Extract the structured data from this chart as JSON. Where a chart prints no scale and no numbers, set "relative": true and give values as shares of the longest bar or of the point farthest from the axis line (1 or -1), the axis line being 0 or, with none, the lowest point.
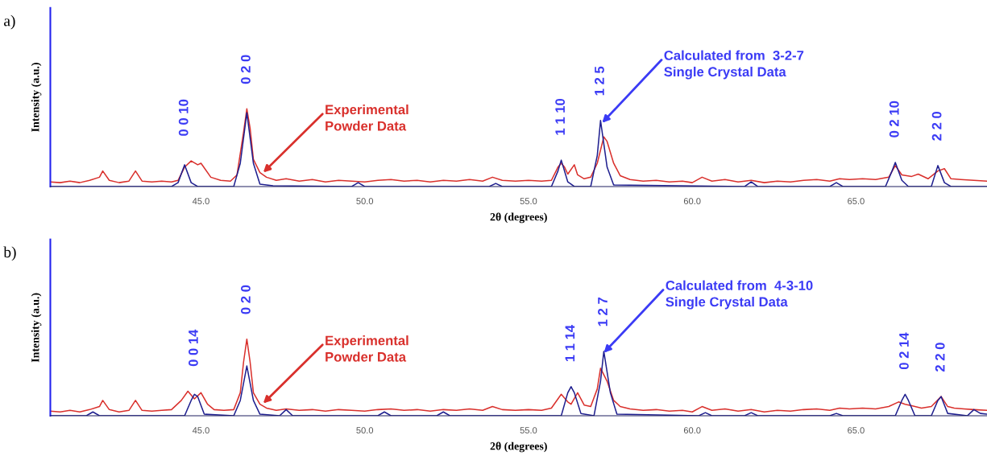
{
  "chart_data": [
    {
      "type": "line",
      "title": "a)",
      "xlabel": "2θ (degrees)",
      "ylabel": "Intensity (a.u.)",
      "relative": true,
      "xlim": [
        40.4,
        69.0
      ],
      "xticks": [
        {
          "value": 45,
          "label": "45.0"
        },
        {
          "value": 50,
          "label": "50.0"
        },
        {
          "value": 55,
          "label": "55.0"
        },
        {
          "value": 60,
          "label": "60.0"
        },
        {
          "value": 65,
          "label": "65.0"
        }
      ],
      "grid": false,
      "legend": false,
      "marker": "none",
      "line_style": "solid",
      "series": [
        {
          "color": "#d9302c",
          "x": [
            40.4,
            40.7,
            41.0,
            41.3,
            41.6,
            41.9,
            42.0,
            42.2,
            42.5,
            42.8,
            43.0,
            43.2,
            43.5,
            43.8,
            44.1,
            44.3,
            44.5,
            44.7,
            44.9,
            45.0,
            45.1,
            45.3,
            45.6,
            45.9,
            46.1,
            46.3,
            46.4,
            46.5,
            46.6,
            46.8,
            47.0,
            47.3,
            47.6,
            48.0,
            48.4,
            48.8,
            49.2,
            49.6,
            50.0,
            50.4,
            50.8,
            51.2,
            51.6,
            52.0,
            52.4,
            52.8,
            53.2,
            53.6,
            53.9,
            54.2,
            54.6,
            55.0,
            55.4,
            55.7,
            55.9,
            56.0,
            56.1,
            56.2,
            56.4,
            56.5,
            56.7,
            56.9,
            57.1,
            57.3,
            57.4,
            57.6,
            57.8,
            58.1,
            58.5,
            58.9,
            59.3,
            59.7,
            60.0,
            60.3,
            60.6,
            61.0,
            61.4,
            61.8,
            62.2,
            62.6,
            63.0,
            63.4,
            63.8,
            64.2,
            64.5,
            64.8,
            65.2,
            65.6,
            66.0,
            66.2,
            66.4,
            66.7,
            66.9,
            67.2,
            67.5,
            67.7,
            67.9,
            68.2,
            68.6,
            69.0
          ],
          "values": [
            0.06,
            0.05,
            0.07,
            0.05,
            0.08,
            0.12,
            0.2,
            0.08,
            0.05,
            0.07,
            0.2,
            0.07,
            0.06,
            0.07,
            0.06,
            0.08,
            0.25,
            0.33,
            0.28,
            0.3,
            0.24,
            0.12,
            0.08,
            0.07,
            0.15,
            0.7,
            1.0,
            0.75,
            0.35,
            0.18,
            0.12,
            0.08,
            0.1,
            0.07,
            0.09,
            0.06,
            0.08,
            0.07,
            0.06,
            0.08,
            0.09,
            0.07,
            0.08,
            0.06,
            0.08,
            0.07,
            0.09,
            0.07,
            0.12,
            0.08,
            0.07,
            0.08,
            0.07,
            0.08,
            0.25,
            0.3,
            0.25,
            0.16,
            0.28,
            0.15,
            0.1,
            0.12,
            0.3,
            0.64,
            0.58,
            0.3,
            0.14,
            0.09,
            0.07,
            0.08,
            0.06,
            0.07,
            0.05,
            0.12,
            0.07,
            0.09,
            0.06,
            0.08,
            0.05,
            0.07,
            0.06,
            0.08,
            0.09,
            0.07,
            0.1,
            0.09,
            0.1,
            0.09,
            0.12,
            0.27,
            0.15,
            0.13,
            0.16,
            0.1,
            0.2,
            0.23,
            0.1,
            0.09,
            0.08,
            0.07
          ]
        },
        {
          "color": "#1f1f8f",
          "x": [
            40.4,
            44.1,
            44.3,
            44.5,
            44.7,
            44.9,
            46.0,
            46.2,
            46.4,
            46.6,
            46.8,
            47.2,
            49.6,
            49.8,
            50.0,
            53.8,
            54.0,
            54.2,
            55.7,
            55.9,
            56.0,
            56.2,
            56.4,
            56.9,
            57.1,
            57.2,
            57.4,
            57.6,
            61.6,
            61.8,
            62.0,
            64.2,
            64.4,
            64.6,
            65.9,
            66.1,
            66.2,
            66.4,
            66.6,
            67.3,
            67.5,
            67.7,
            67.9,
            69.0
          ],
          "values": [
            0,
            0,
            0.05,
            0.28,
            0.05,
            0,
            0,
            0.3,
            0.95,
            0.3,
            0.03,
            0.01,
            0,
            0.05,
            0,
            0,
            0.04,
            0,
            0,
            0.2,
            0.34,
            0.06,
            0,
            0,
            0.4,
            0.85,
            0.25,
            0.02,
            0,
            0.06,
            0,
            0,
            0.05,
            0,
            0,
            0.2,
            0.31,
            0.08,
            0,
            0,
            0.27,
            0.05,
            0,
            0
          ]
        }
      ],
      "annotations": [
        {
          "text": "0 0 10",
          "x": 44.5,
          "y": 0.33
        },
        {
          "text": "0 2 0",
          "x": 46.4,
          "y": 1.0
        },
        {
          "text": "1 1 10",
          "x": 56.0,
          "y": 0.34
        },
        {
          "text": "1 2 5",
          "x": 57.2,
          "y": 0.85
        },
        {
          "text": "0 2 10",
          "x": 66.2,
          "y": 0.31
        },
        {
          "text": "2 2 0",
          "x": 67.5,
          "y": 0.27
        },
        {
          "text": "Experimental\nPowder Data",
          "x": 46.9,
          "y": 0.18
        },
        {
          "text": "Calculated from  3-2-7\nSingle Crystal Data",
          "x": 57.25,
          "y": 0.82
        }
      ]
    },
    {
      "type": "line",
      "title": "b)",
      "xlabel": "2θ (degrees)",
      "ylabel": "Intensity (a.u.)",
      "relative": true,
      "xlim": [
        40.4,
        69.0
      ],
      "xticks": [
        {
          "value": 45,
          "label": "45.0"
        },
        {
          "value": 50,
          "label": "50.0"
        },
        {
          "value": 55,
          "label": "55.0"
        },
        {
          "value": 60,
          "label": "60.0"
        },
        {
          "value": 65,
          "label": "65.0"
        }
      ],
      "grid": false,
      "legend": false,
      "marker": "none",
      "line_style": "solid",
      "series": [
        {
          "color": "#d9302c",
          "x": [
            40.4,
            40.7,
            41.0,
            41.3,
            41.6,
            41.9,
            42.0,
            42.2,
            42.5,
            42.8,
            43.0,
            43.2,
            43.5,
            43.8,
            44.1,
            44.4,
            44.6,
            44.8,
            45.0,
            45.2,
            45.4,
            45.7,
            46.0,
            46.2,
            46.3,
            46.4,
            46.5,
            46.6,
            46.8,
            47.0,
            47.3,
            47.6,
            48.0,
            48.4,
            48.8,
            49.2,
            49.6,
            50.0,
            50.4,
            50.8,
            51.2,
            51.6,
            52.0,
            52.4,
            52.8,
            53.2,
            53.6,
            53.9,
            54.2,
            54.6,
            55.0,
            55.4,
            55.7,
            55.9,
            56.0,
            56.2,
            56.3,
            56.5,
            56.7,
            56.9,
            57.1,
            57.2,
            57.4,
            57.6,
            57.8,
            58.1,
            58.5,
            58.9,
            59.3,
            59.7,
            60.0,
            60.3,
            60.6,
            61.0,
            61.4,
            61.8,
            62.2,
            62.6,
            63.0,
            63.4,
            63.8,
            64.2,
            64.5,
            64.8,
            65.2,
            65.6,
            66.0,
            66.3,
            66.5,
            66.7,
            67.0,
            67.3,
            67.6,
            67.8,
            68.0,
            68.3,
            68.6,
            69.0
          ],
          "values": [
            0.06,
            0.05,
            0.07,
            0.05,
            0.08,
            0.12,
            0.2,
            0.08,
            0.05,
            0.07,
            0.2,
            0.07,
            0.06,
            0.07,
            0.08,
            0.2,
            0.32,
            0.22,
            0.3,
            0.15,
            0.08,
            0.07,
            0.08,
            0.3,
            0.7,
            1.0,
            0.7,
            0.3,
            0.15,
            0.1,
            0.07,
            0.09,
            0.07,
            0.08,
            0.06,
            0.08,
            0.07,
            0.06,
            0.08,
            0.09,
            0.07,
            0.08,
            0.06,
            0.08,
            0.07,
            0.09,
            0.07,
            0.12,
            0.08,
            0.07,
            0.08,
            0.07,
            0.1,
            0.22,
            0.28,
            0.18,
            0.15,
            0.3,
            0.14,
            0.12,
            0.35,
            0.62,
            0.45,
            0.2,
            0.12,
            0.09,
            0.07,
            0.08,
            0.06,
            0.07,
            0.05,
            0.12,
            0.07,
            0.09,
            0.06,
            0.08,
            0.05,
            0.07,
            0.06,
            0.08,
            0.09,
            0.07,
            0.1,
            0.09,
            0.1,
            0.09,
            0.12,
            0.18,
            0.15,
            0.13,
            0.1,
            0.12,
            0.25,
            0.12,
            0.1,
            0.09,
            0.08,
            0.07
          ]
        },
        {
          "color": "#1f1f8f",
          "x": [
            40.4,
            41.5,
            41.7,
            41.9,
            44.5,
            44.7,
            44.8,
            44.9,
            45.1,
            46.0,
            46.2,
            46.4,
            46.6,
            46.8,
            47.4,
            47.6,
            47.8,
            50.4,
            50.6,
            50.8,
            52.2,
            52.4,
            52.6,
            56.0,
            56.2,
            56.3,
            56.4,
            56.6,
            57.0,
            57.2,
            57.3,
            57.5,
            57.7,
            60.2,
            60.4,
            60.6,
            61.6,
            61.8,
            62.0,
            64.2,
            64.4,
            64.6,
            66.2,
            66.4,
            66.5,
            66.6,
            66.8,
            67.3,
            67.5,
            67.6,
            67.8,
            68.4,
            68.6,
            68.8,
            69.0
          ],
          "values": [
            0,
            0,
            0.05,
            0,
            0,
            0.2,
            0.28,
            0.25,
            0.02,
            0,
            0.2,
            0.65,
            0.2,
            0.02,
            0,
            0.08,
            0,
            0,
            0.05,
            0,
            0,
            0.05,
            0,
            0,
            0.3,
            0.38,
            0.3,
            0.03,
            0,
            0.45,
            0.84,
            0.3,
            0.02,
            0,
            0.04,
            0,
            0,
            0.04,
            0,
            0,
            0.03,
            0,
            0,
            0.2,
            0.28,
            0.2,
            0,
            0,
            0.2,
            0.25,
            0.03,
            0,
            0.08,
            0.03,
            0.02
          ]
        }
      ],
      "annotations": [
        {
          "text": "0 0 14",
          "x": 44.8,
          "y": 0.32
        },
        {
          "text": "0 2 0",
          "x": 46.4,
          "y": 1.0
        },
        {
          "text": "1 1 14",
          "x": 56.3,
          "y": 0.38
        },
        {
          "text": "1 2 7",
          "x": 57.3,
          "y": 0.84
        },
        {
          "text": "0 2 14",
          "x": 66.5,
          "y": 0.28
        },
        {
          "text": "2 2 0",
          "x": 67.6,
          "y": 0.25
        },
        {
          "text": "Experimental\nPowder Data",
          "x": 46.9,
          "y": 0.16
        },
        {
          "text": "Calculated from  4-3-10\nSingle Crystal Data",
          "x": 57.3,
          "y": 0.82
        }
      ]
    }
  ]
}
